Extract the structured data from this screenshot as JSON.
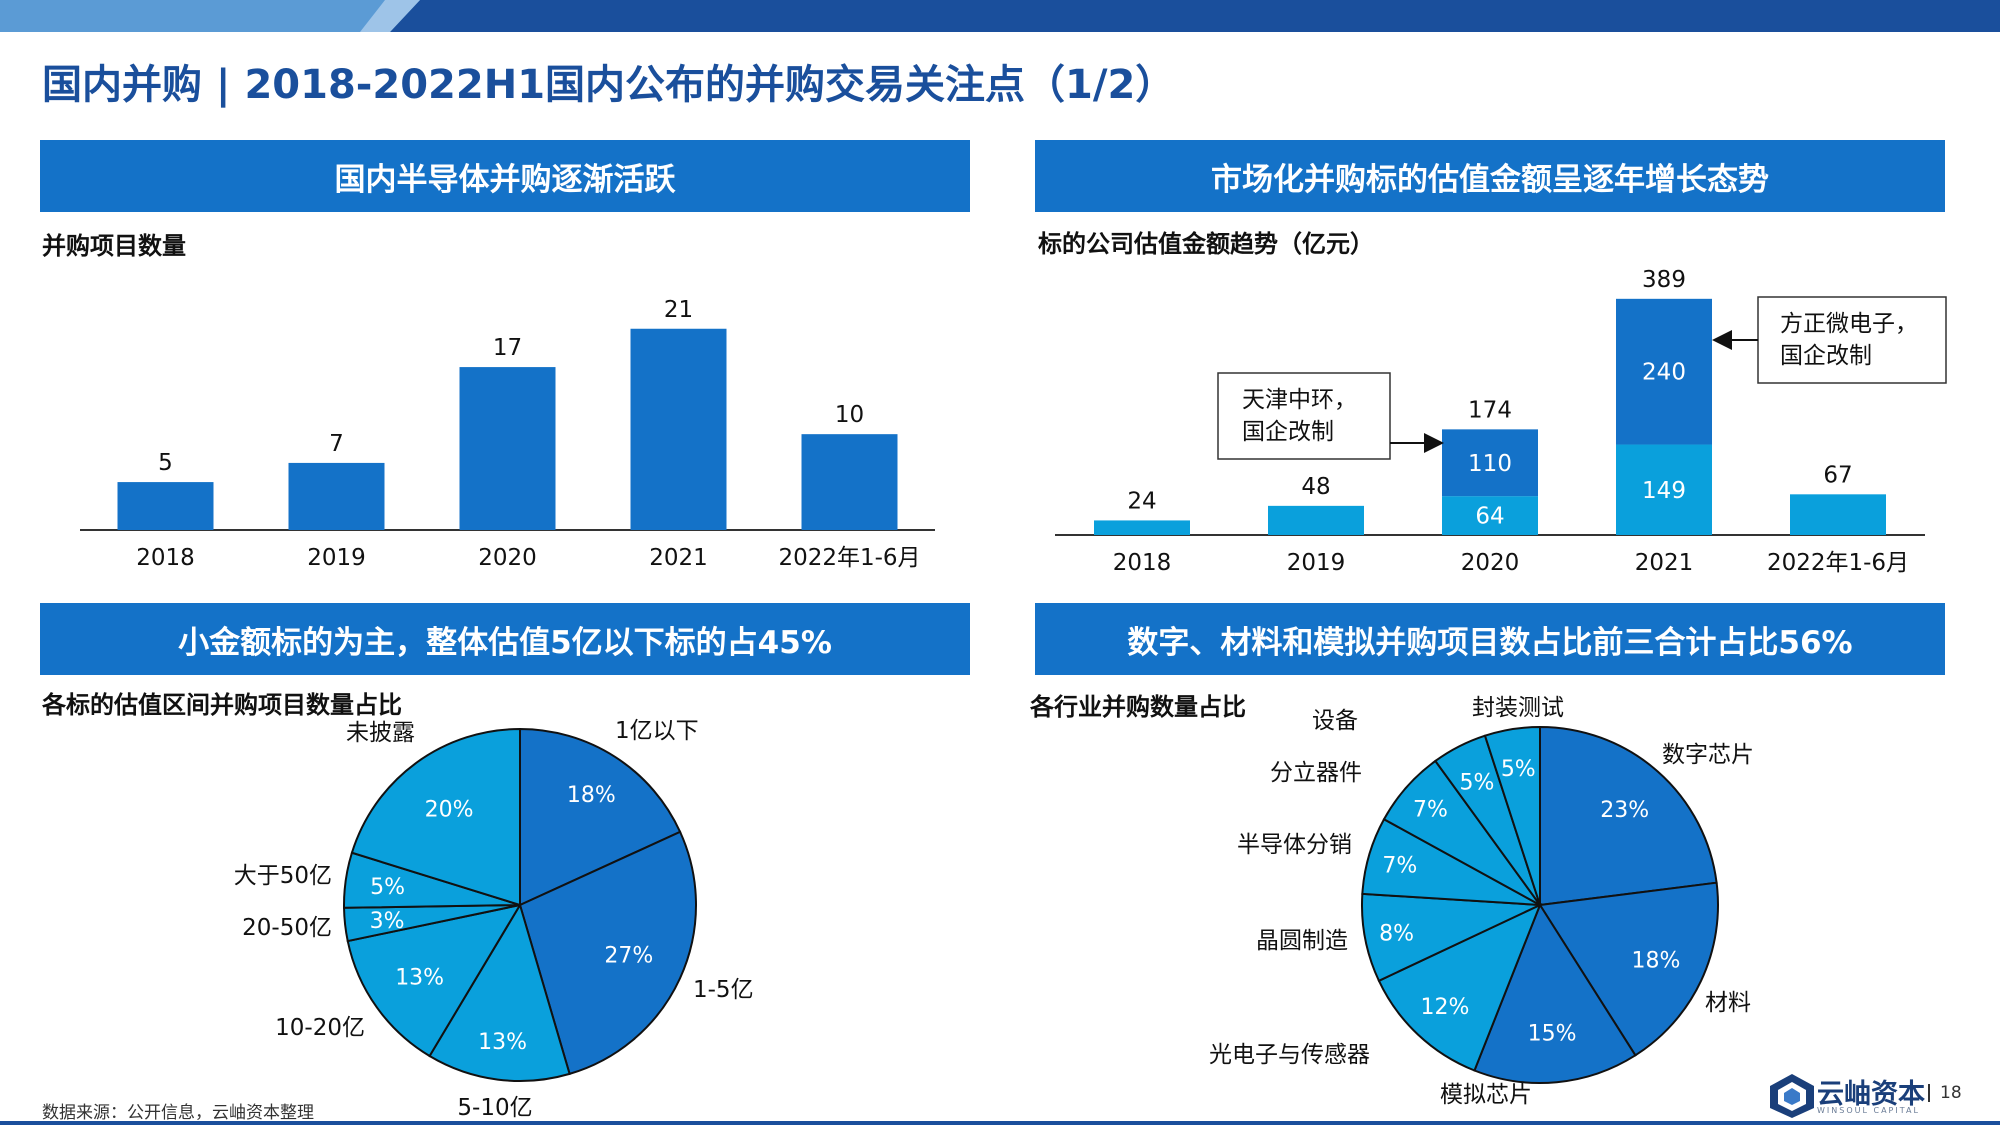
{
  "page": {
    "title": "国内并购 | 2018-2022H1国内公布的并购交易关注点（1/2）",
    "footnote": "数据来源：公开信息，云岫资本整理",
    "logo_text": "云岫资本",
    "logo_en": "WINSOUL CAPITAL",
    "page_number": "18",
    "colors": {
      "dark_blue": "#1472c8",
      "light_blue": "#0aa0dc",
      "title_blue": "#1a4f9c"
    }
  },
  "panels": {
    "tl": {
      "banner": "国内半导体并购逐渐活跃",
      "subtitle": "并购项目数量"
    },
    "tr": {
      "banner": "市场化并购标的估值金额呈逐年增长态势",
      "subtitle": "标的公司估值金额趋势（亿元）"
    },
    "bl": {
      "banner": "小金额标的为主，整体估值5亿以下标的占45%",
      "subtitle": "各标的估值区间并购项目数量占比"
    },
    "br": {
      "banner": "数字、材料和模拟并购项目数占比前三合计占比56%",
      "subtitle": "各行业并购数量占比"
    }
  },
  "chart_data": [
    {
      "type": "bar",
      "categories": [
        "2018",
        "2019",
        "2020",
        "2021",
        "2022年1-6月"
      ],
      "values": [
        5,
        7,
        17,
        21,
        10
      ],
      "ylim": [
        0,
        24
      ],
      "grid": false
    },
    {
      "type": "bar",
      "stacked": true,
      "categories": [
        "2018",
        "2019",
        "2020",
        "2021",
        "2022年1-6月"
      ],
      "series": [
        {
          "values": [
            24,
            48,
            64,
            149,
            67
          ],
          "color": "#0aa0dc"
        },
        {
          "values": [
            0,
            0,
            110,
            240,
            0
          ],
          "color": "#1472c8"
        }
      ],
      "totals": [
        24,
        48,
        174,
        389,
        67
      ],
      "ylim": [
        0,
        420
      ],
      "grid": false,
      "annotations": [
        {
          "text": [
            "天津中环，",
            "国企改制"
          ],
          "target_category": "2020"
        },
        {
          "text": [
            "方正微电子，",
            "国企改制"
          ],
          "target_category": "2021"
        }
      ]
    },
    {
      "type": "pie",
      "slices": [
        {
          "label": "1亿以下",
          "value": 18,
          "display": "18%",
          "color": "#1472c8"
        },
        {
          "label": "1-5亿",
          "value": 27,
          "display": "27%",
          "color": "#1472c8"
        },
        {
          "label": "5-10亿",
          "value": 13,
          "display": "13%",
          "color": "#0aa0dc"
        },
        {
          "label": "10-20亿",
          "value": 13,
          "display": "13%",
          "color": "#0aa0dc"
        },
        {
          "label": "20-50亿",
          "value": 3,
          "display": "3%",
          "color": "#0aa0dc"
        },
        {
          "label": "大于50亿",
          "value": 5,
          "display": "5%",
          "color": "#0aa0dc"
        },
        {
          "label": "未披露",
          "value": 20,
          "display": "20%",
          "color": "#0aa0dc"
        }
      ]
    },
    {
      "type": "pie",
      "slices": [
        {
          "label": "数字芯片",
          "value": 23,
          "display": "23%",
          "color": "#1472c8"
        },
        {
          "label": "材料",
          "value": 18,
          "display": "18%",
          "color": "#1472c8"
        },
        {
          "label": "模拟芯片",
          "value": 15,
          "display": "15%",
          "color": "#1472c8"
        },
        {
          "label": "光电子与传感器",
          "value": 12,
          "display": "12%",
          "color": "#0aa0dc"
        },
        {
          "label": "晶圆制造",
          "value": 8,
          "display": "8%",
          "color": "#0aa0dc"
        },
        {
          "label": "半导体分销",
          "value": 7,
          "display": "7%",
          "color": "#0aa0dc"
        },
        {
          "label": "分立器件",
          "value": 7,
          "display": "7%",
          "color": "#0aa0dc"
        },
        {
          "label": "设备",
          "value": 5,
          "display": "5%",
          "color": "#0aa0dc"
        },
        {
          "label": "封装测试",
          "value": 5,
          "display": "5%",
          "color": "#0aa0dc"
        }
      ]
    }
  ]
}
